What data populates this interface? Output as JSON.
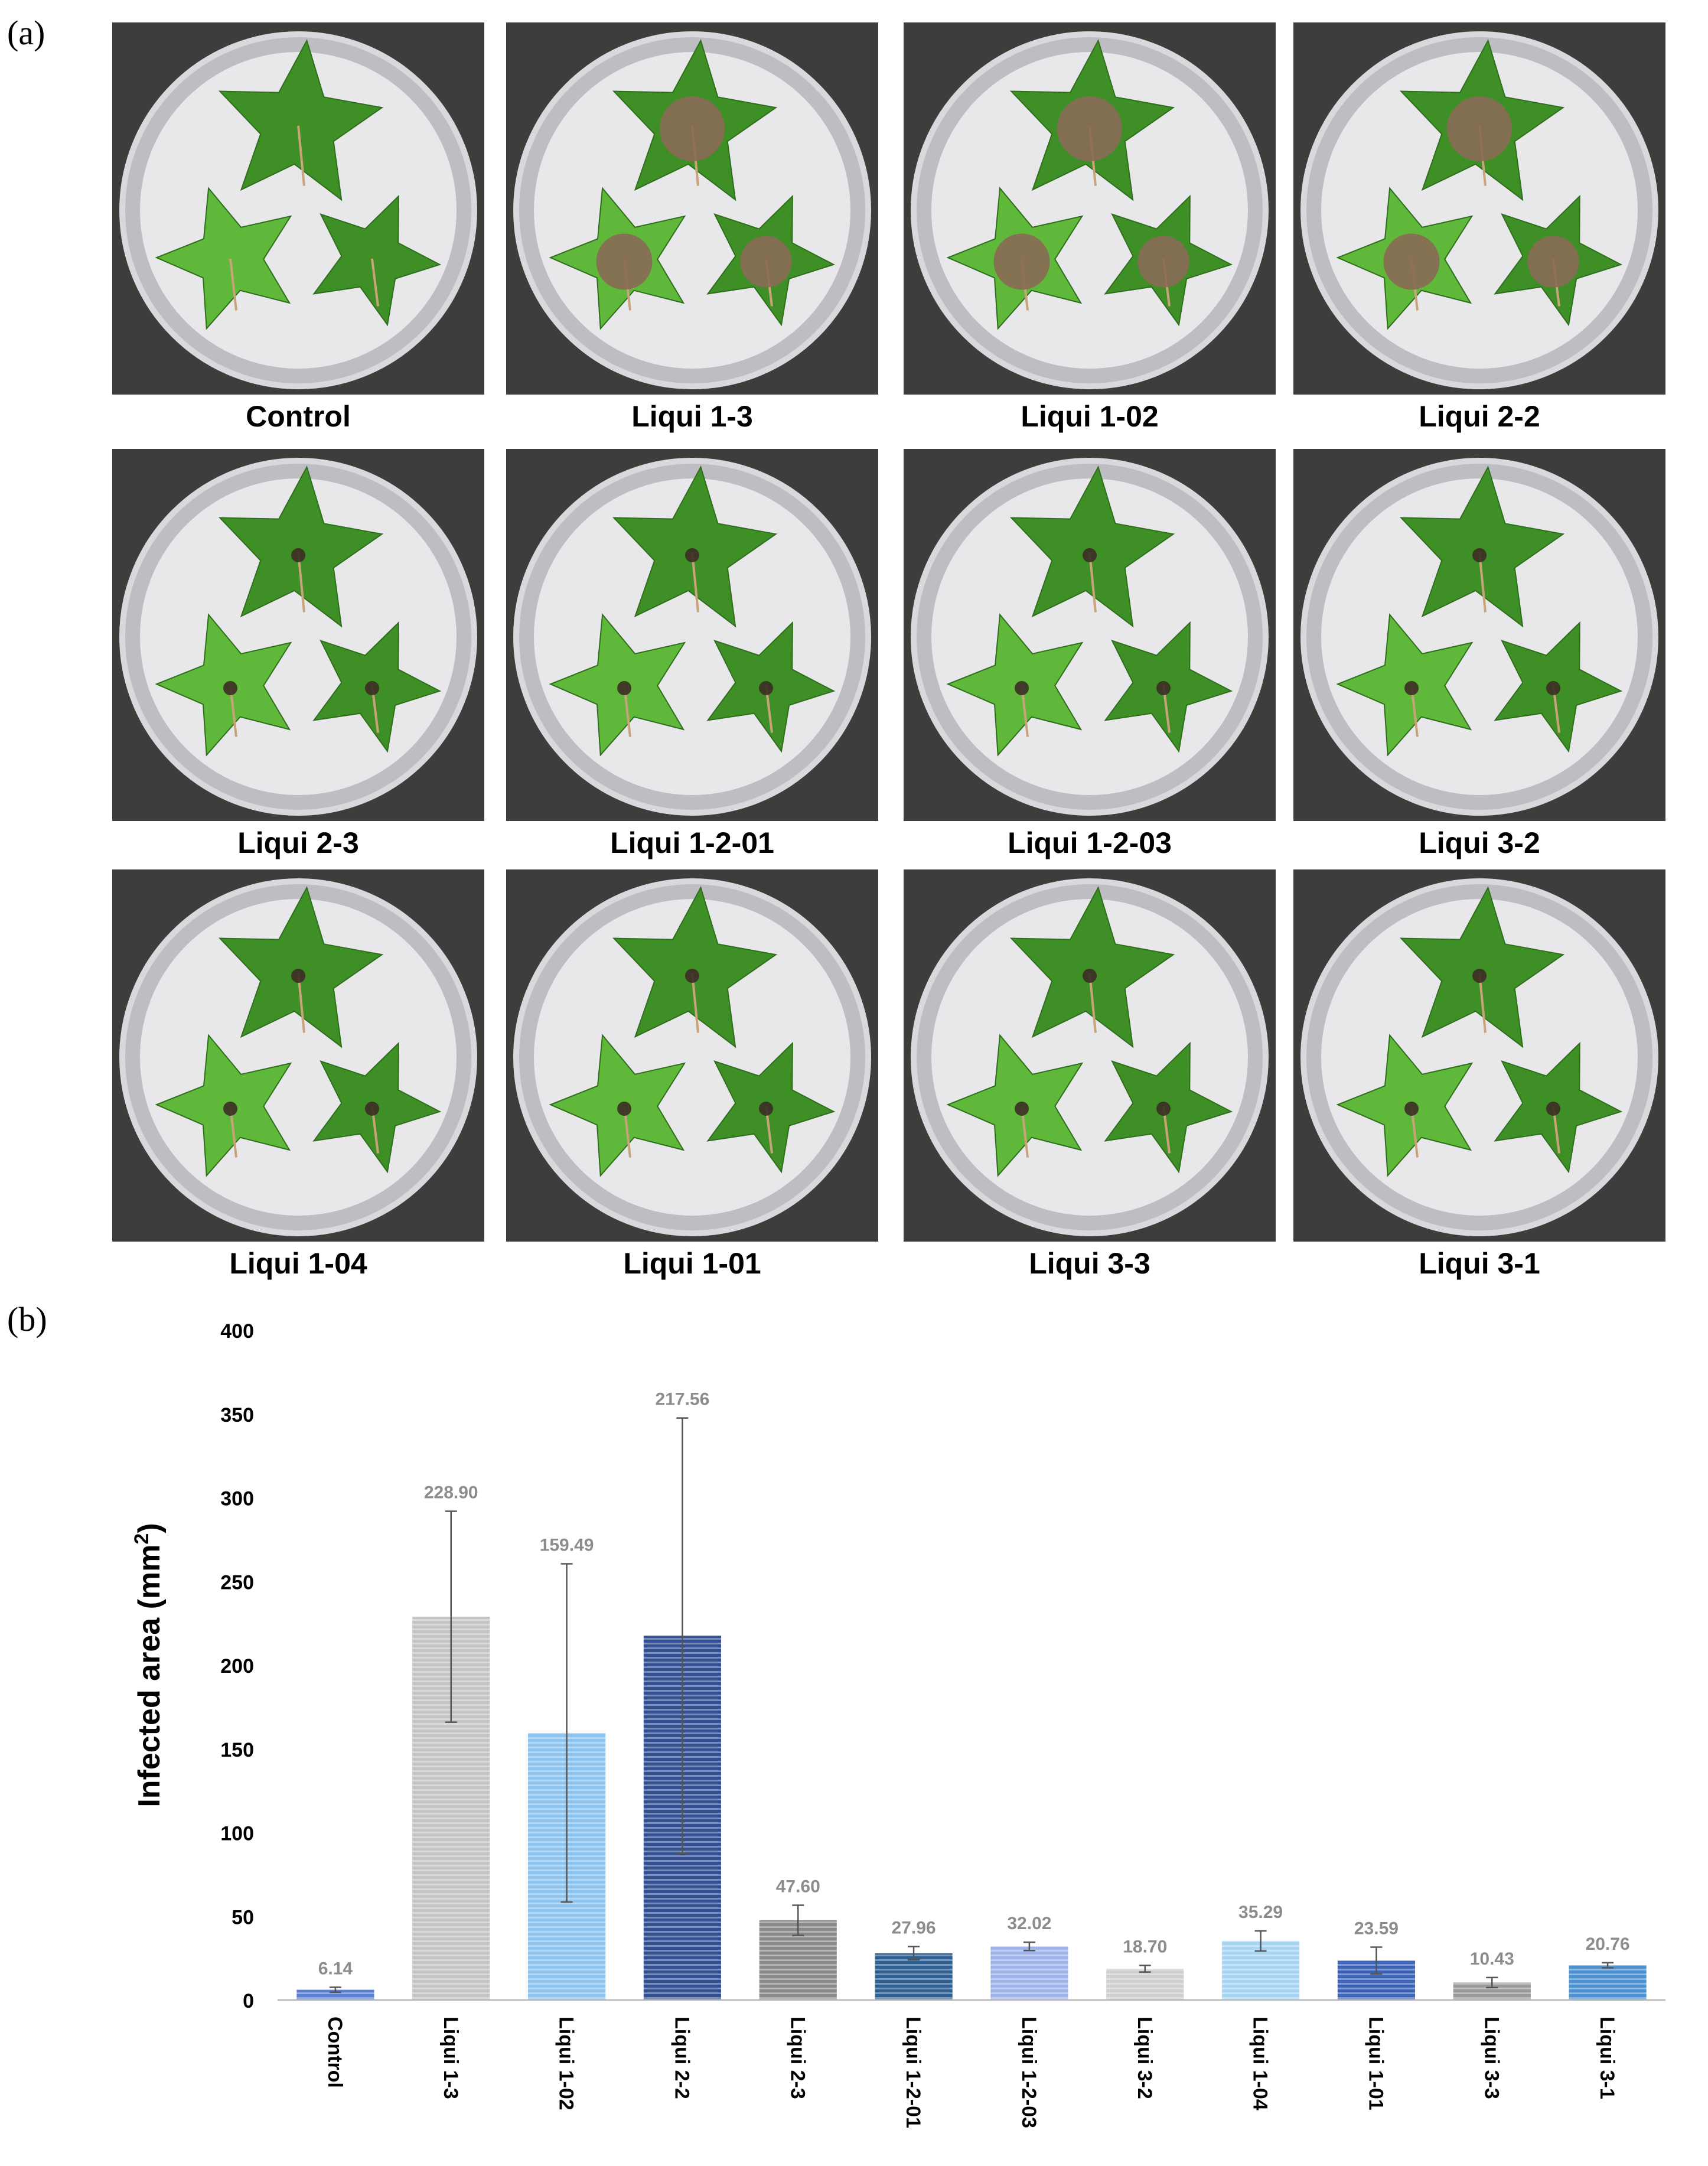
{
  "panel_a_label": "(a)",
  "panel_b_label": "(b)",
  "colors": {
    "leaf": "#5fb83a",
    "leaf_dark": "#3f8f27",
    "lesion": "#8a6a55",
    "dish": "#e8e8ea",
    "background": "#3f3c3c"
  },
  "photos": [
    {
      "label": "Control",
      "lesion": "none"
    },
    {
      "label": "Liqui 1-3",
      "lesion": "large"
    },
    {
      "label": "Liqui 1-02",
      "lesion": "large"
    },
    {
      "label": "Liqui 2-2",
      "lesion": "large"
    },
    {
      "label": "Liqui 2-3",
      "lesion": "small"
    },
    {
      "label": "Liqui 1-2-01",
      "lesion": "small"
    },
    {
      "label": "Liqui 1-2-03",
      "lesion": "small"
    },
    {
      "label": "Liqui 3-2",
      "lesion": "small"
    },
    {
      "label": "Liqui 1-04",
      "lesion": "small"
    },
    {
      "label": "Liqui 1-01",
      "lesion": "small"
    },
    {
      "label": "Liqui 3-3",
      "lesion": "small"
    },
    {
      "label": "Liqui 3-1",
      "lesion": "small"
    }
  ],
  "chart_data": {
    "type": "bar",
    "ylabel": "Infected area (mm",
    "ylabel_superscript": "2",
    "ylabel_close": ")",
    "ylim": [
      0,
      400
    ],
    "yticks": [
      0,
      50,
      100,
      150,
      200,
      250,
      300,
      350,
      400
    ],
    "grid": false,
    "categories": [
      "Control",
      "Liqui 1-3",
      "Liqui 1-02",
      "Liqui 2-2",
      "Liqui 2-3",
      "Liqui 1-2-01",
      "Liqui 1-2-03",
      "Liqui 3-2",
      "Liqui 1-04",
      "Liqui 1-01",
      "Liqui 3-3",
      "Liqui 3-1"
    ],
    "values": [
      6.14,
      228.9,
      159.49,
      217.56,
      47.6,
      27.96,
      32.02,
      18.7,
      35.29,
      23.59,
      10.43,
      20.76
    ],
    "value_labels": [
      "6.14",
      "228.90",
      "159.49",
      "217.56",
      "47.60",
      "27.96",
      "32.02",
      "18.70",
      "35.29",
      "23.59",
      "10.43",
      "20.76"
    ],
    "errors": [
      1.5,
      63,
      101,
      130,
      9,
      4,
      2.5,
      2,
      6,
      8,
      3,
      1.5
    ],
    "bar_colors": [
      "#5b7fd0",
      "#c4c4c4",
      "#8fc3ec",
      "#34508f",
      "#8a8a8a",
      "#2f5f8f",
      "#9fb4e6",
      "#cfcfcf",
      "#a9d4f2",
      "#3d63b5",
      "#9a9a9a",
      "#4f90cf"
    ]
  }
}
